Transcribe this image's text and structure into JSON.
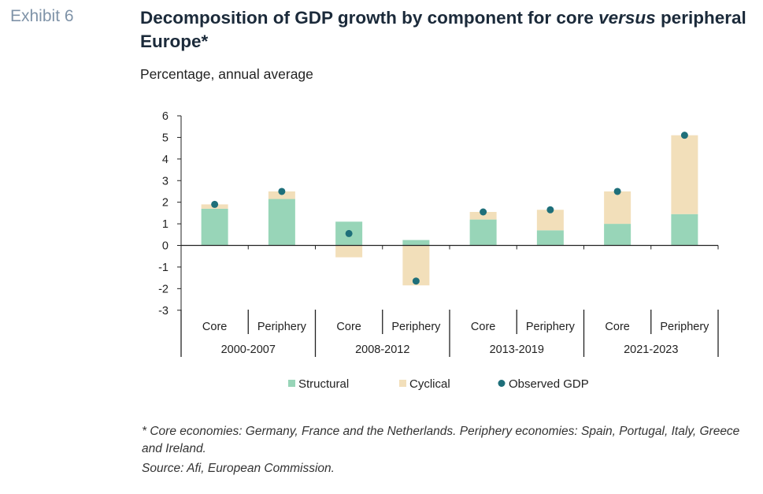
{
  "exhibit_label": "Exhibit 6",
  "title_part1": "Decomposition of GDP growth by component for core ",
  "title_italic": "versus",
  "title_part2": " peripheral Europe*",
  "subtitle": "Percentage, annual average",
  "footnote": "* Core economies: Germany, France and the Netherlands. Periphery economies: Spain, Portugal, Italy, Greece and Ireland.",
  "source": "Source: Afi, European Commission.",
  "colors": {
    "structural": "#98d5b8",
    "cyclical": "#f2dfba",
    "observed": "#1e6f7a",
    "axis": "#222222"
  },
  "chart_data": {
    "type": "bar",
    "stacked": true,
    "ylim": [
      -3,
      6
    ],
    "yticks": [
      6,
      5,
      4,
      3,
      2,
      1,
      0,
      -1,
      -2,
      -3
    ],
    "categories": [
      "Core",
      "Periphery",
      "Core",
      "Periphery",
      "Core",
      "Periphery",
      "Core",
      "Periphery"
    ],
    "groups": [
      {
        "label": "2000-2007",
        "categories": [
          "Core",
          "Periphery"
        ]
      },
      {
        "label": "2008-2012",
        "categories": [
          "Core",
          "Periphery"
        ]
      },
      {
        "label": "2013-2019",
        "categories": [
          "Core",
          "Periphery"
        ]
      },
      {
        "label": "2021-2023",
        "categories": [
          "Core",
          "Periphery"
        ]
      }
    ],
    "series": [
      {
        "name": "Structural",
        "kind": "bar",
        "values": [
          1.7,
          2.15,
          1.1,
          0.25,
          1.2,
          0.7,
          1.0,
          1.45
        ]
      },
      {
        "name": "Cyclical",
        "kind": "bar",
        "values": [
          0.2,
          0.35,
          -0.55,
          -1.85,
          0.35,
          0.95,
          1.5,
          3.65
        ]
      },
      {
        "name": "Observed GDP",
        "kind": "point",
        "values": [
          1.9,
          2.5,
          0.55,
          -1.65,
          1.55,
          1.65,
          2.5,
          5.1
        ]
      }
    ],
    "legend_position": "bottom"
  }
}
